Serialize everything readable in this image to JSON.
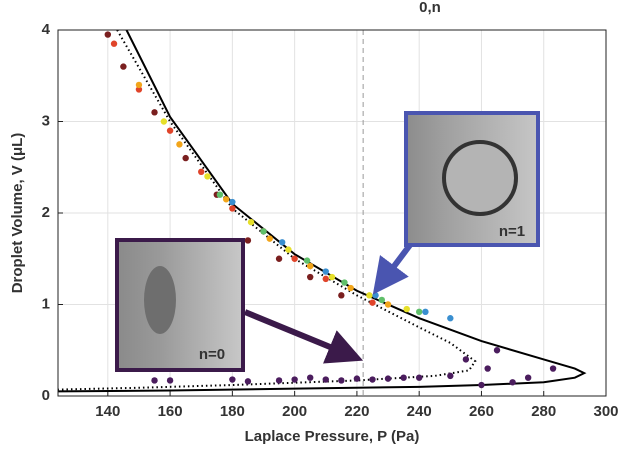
{
  "chart_data": {
    "type": "scatter",
    "x_label": "Laplace Pressure, P (Pa)",
    "y_label": "Droplet Volume, V (μL)",
    "xlim": [
      124,
      300
    ],
    "xticks": [
      140,
      160,
      180,
      200,
      220,
      240,
      260,
      280,
      300
    ],
    "ylim": [
      0,
      4
    ],
    "yticks": [
      0,
      1,
      2,
      3,
      4
    ],
    "vline": 222,
    "top_annotation": "0,n",
    "insets": [
      {
        "label": "n=0",
        "color": "#3b1a4a"
      },
      {
        "label": "n=1",
        "color": "#4a55b0"
      }
    ],
    "series": [
      {
        "style": "solid",
        "color": "#000000",
        "x": [
          146,
          160,
          180,
          200,
          220,
          240,
          260,
          280,
          290,
          293,
          290,
          280,
          260,
          240,
          200,
          160,
          124
        ],
        "values": [
          4,
          3.05,
          2.1,
          1.55,
          1.15,
          0.85,
          0.6,
          0.4,
          0.3,
          0.25,
          0.2,
          0.15,
          0.12,
          0.1,
          0.08,
          0.06,
          0.05
        ]
      },
      {
        "style": "dotted",
        "color": "#000000",
        "x": [
          143,
          160,
          180,
          200,
          220,
          240,
          250,
          258,
          256,
          245,
          220,
          180,
          150,
          124
        ],
        "values": [
          4,
          3.0,
          2.05,
          1.5,
          1.1,
          0.75,
          0.58,
          0.38,
          0.28,
          0.22,
          0.17,
          0.12,
          0.09,
          0.07
        ]
      },
      {
        "style": "points",
        "color": "#7a1f1f",
        "x": [
          140,
          145,
          155,
          165,
          175,
          185,
          195,
          205,
          215
        ],
        "values": [
          3.95,
          3.6,
          3.1,
          2.6,
          2.2,
          1.7,
          1.5,
          1.3,
          1.1
        ]
      },
      {
        "style": "points",
        "color": "#e0442a",
        "x": [
          142,
          150,
          160,
          170,
          180,
          190,
          200,
          210,
          225
        ],
        "values": [
          3.85,
          3.35,
          2.9,
          2.45,
          2.05,
          1.8,
          1.5,
          1.28,
          1.02
        ]
      },
      {
        "style": "points",
        "color": "#f2a51a",
        "x": [
          150,
          163,
          178,
          192,
          205,
          218,
          230
        ],
        "values": [
          3.4,
          2.75,
          2.15,
          1.72,
          1.42,
          1.18,
          1.0
        ]
      },
      {
        "style": "points",
        "color": "#e6e02a",
        "x": [
          158,
          172,
          186,
          198,
          212,
          224,
          236
        ],
        "values": [
          3.0,
          2.4,
          1.9,
          1.6,
          1.3,
          1.1,
          0.95
        ]
      },
      {
        "style": "points",
        "color": "#5fbf6a",
        "x": [
          176,
          190,
          204,
          216,
          228,
          240
        ],
        "values": [
          2.2,
          1.8,
          1.48,
          1.24,
          1.05,
          0.92
        ]
      },
      {
        "style": "points",
        "color": "#3a8fd0",
        "x": [
          180,
          196,
          210,
          226,
          242,
          250
        ],
        "values": [
          2.12,
          1.68,
          1.36,
          1.1,
          0.92,
          0.85
        ]
      },
      {
        "style": "points",
        "color": "#4b1d5e",
        "x": [
          155,
          160,
          180,
          185,
          195,
          200,
          205,
          210,
          215,
          220,
          225,
          230,
          235,
          240,
          250,
          255,
          260,
          262,
          265,
          270,
          275,
          283
        ],
        "values": [
          0.17,
          0.17,
          0.18,
          0.16,
          0.17,
          0.18,
          0.2,
          0.18,
          0.17,
          0.19,
          0.18,
          0.19,
          0.2,
          0.2,
          0.22,
          0.4,
          0.12,
          0.3,
          0.5,
          0.15,
          0.2,
          0.3
        ]
      }
    ]
  }
}
